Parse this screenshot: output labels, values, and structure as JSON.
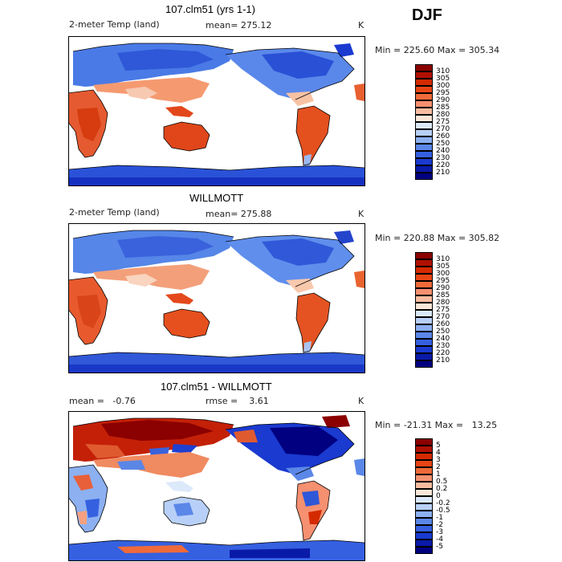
{
  "season": "DJF",
  "panels": [
    {
      "title": "107.clm51 (yrs 1-1)",
      "variable": "2-meter Temp (land)",
      "mean_text": "mean= 275.12",
      "units": "K",
      "minmax": "Min = 225.60 Max = 305.34"
    },
    {
      "title": "WILLMOTT",
      "variable": "2-meter Temp (land)",
      "mean_text": "mean= 275.88",
      "units": "K",
      "minmax": "Min = 220.88 Max = 305.82"
    },
    {
      "title": "107.clm51 - WILLMOTT",
      "mean_text": "mean =   -0.76",
      "rmse_text": "rmse =    3.61",
      "units": "K",
      "minmax": "Min = -21.31 Max =   13.25"
    }
  ],
  "temp_legend": {
    "labels": [
      "310",
      "305",
      "300",
      "295",
      "290",
      "285",
      "280",
      "275",
      "270",
      "260",
      "250",
      "240",
      "230",
      "220",
      "210"
    ],
    "colors": [
      "#8b0000",
      "#b01000",
      "#d42a00",
      "#e84515",
      "#f06a3a",
      "#f59070",
      "#f9bca0",
      "#fce6d8",
      "#dce9fa",
      "#b8d0f7",
      "#8cb0f0",
      "#5b87e8",
      "#3560e0",
      "#1a3ad0",
      "#0a1aa8",
      "#000080"
    ]
  },
  "diff_legend": {
    "labels": [
      "5",
      "4",
      "3",
      "2",
      "1",
      "0.5",
      "0.2",
      "0",
      "-0.2",
      "-0.5",
      "-1",
      "-2",
      "-3",
      "-4",
      "-5"
    ],
    "colors": [
      "#8b0000",
      "#b01000",
      "#d42a00",
      "#e84515",
      "#f06a3a",
      "#f59070",
      "#f9bca0",
      "#fce6d8",
      "#dce9fa",
      "#b8d0f7",
      "#8cb0f0",
      "#5b87e8",
      "#3560e0",
      "#1a3ad0",
      "#0a1aa8",
      "#000080"
    ]
  }
}
